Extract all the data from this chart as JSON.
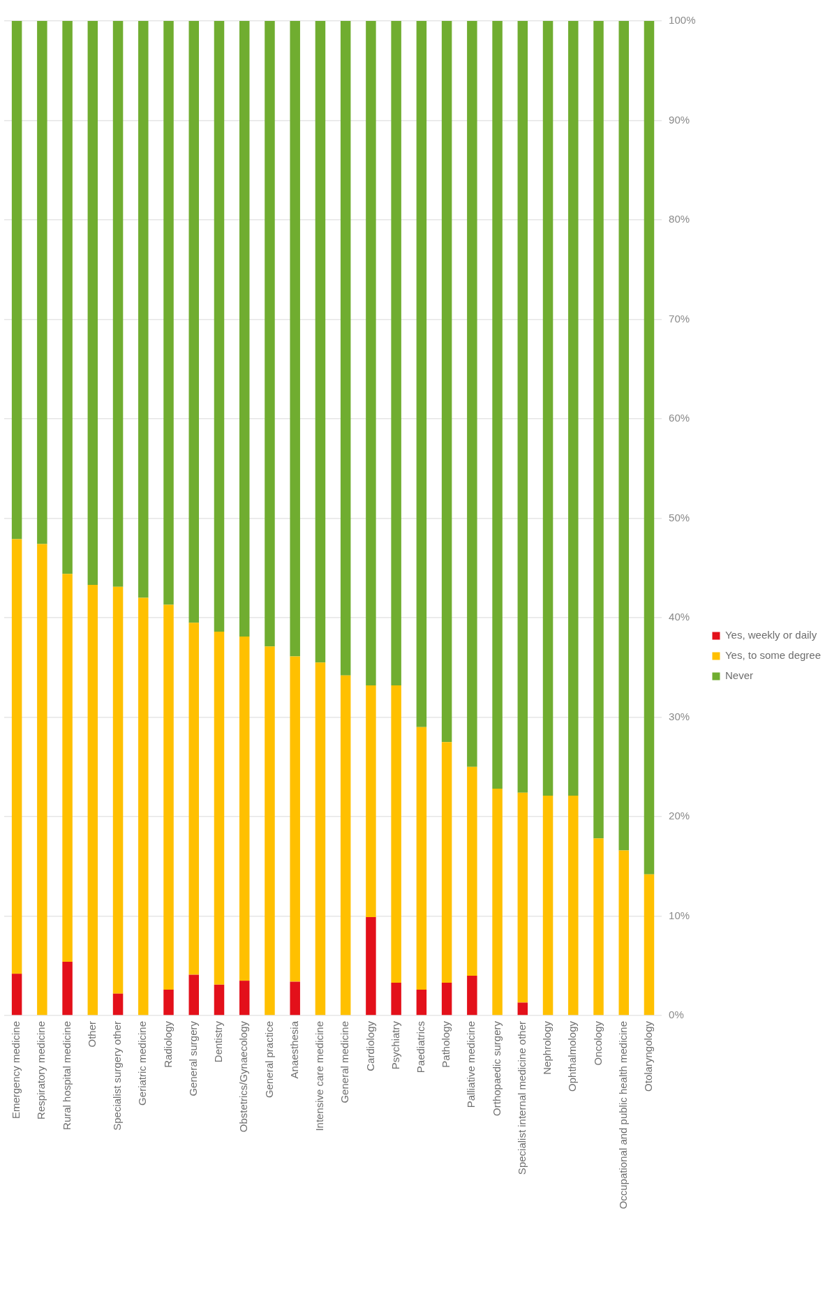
{
  "chart_data": {
    "type": "bar",
    "stacked": true,
    "categories": [
      "Emergency medicine",
      "Respiratory medicine",
      "Rural hospital medicine",
      "Other",
      "Specialist surgery other",
      "Geriatric medicine",
      "Radiology",
      "General surgery",
      "Dentistry",
      "Obstetrics/Gynaecology",
      "General practice",
      "Anaesthesia",
      "Intensive care medicine",
      "General medicine",
      "Cardiology",
      "Psychiatry",
      "Paediatrics",
      "Pathology",
      "Palliative medicine",
      "Orthopaedic surgery",
      "Specialist internal medicine other",
      "Nephrology",
      "Ophthalmology",
      "Oncology",
      "Occupational and public health medicine",
      "Otolaryngology"
    ],
    "series": [
      {
        "name": "Yes, weekly or daily",
        "color": "#e3101a",
        "values": [
          4.2,
          0,
          5.4,
          0,
          2.2,
          0,
          2.6,
          4.1,
          3.1,
          3.5,
          0,
          3.4,
          0,
          0,
          9.9,
          3.3,
          2.6,
          3.3,
          4.0,
          0,
          1.3,
          0,
          0,
          0,
          0,
          0
        ]
      },
      {
        "name": "Yes, to some degree",
        "color": "#ffc000",
        "values": [
          43.7,
          47.4,
          39.0,
          43.3,
          40.9,
          42.0,
          38.7,
          35.4,
          35.5,
          34.6,
          37.1,
          32.7,
          35.5,
          34.2,
          23.3,
          29.9,
          26.4,
          24.2,
          21.0,
          22.8,
          21.1,
          22.1,
          22.1,
          17.8,
          16.6,
          14.2
        ]
      },
      {
        "name": "Never",
        "color": "#70ad30",
        "values": [
          52.1,
          52.6,
          55.6,
          56.7,
          56.9,
          58.0,
          58.7,
          60.5,
          61.4,
          61.9,
          62.9,
          63.9,
          64.5,
          65.8,
          66.8,
          66.8,
          71.0,
          72.5,
          75.0,
          77.2,
          77.6,
          77.9,
          77.9,
          82.2,
          83.4,
          85.8
        ]
      }
    ],
    "ylim": [
      0,
      100
    ],
    "yticks": [
      {
        "value": 0,
        "label": "0%"
      },
      {
        "value": 10,
        "label": "10%"
      },
      {
        "value": 20,
        "label": "20%"
      },
      {
        "value": 30,
        "label": "30%"
      },
      {
        "value": 40,
        "label": "40%"
      },
      {
        "value": 50,
        "label": "50%"
      },
      {
        "value": 60,
        "label": "60%"
      },
      {
        "value": 70,
        "label": "70%"
      },
      {
        "value": 80,
        "label": "80%"
      },
      {
        "value": 90,
        "label": "90%"
      },
      {
        "value": 100,
        "label": "100%"
      }
    ],
    "grid": "y",
    "legend": "right"
  }
}
